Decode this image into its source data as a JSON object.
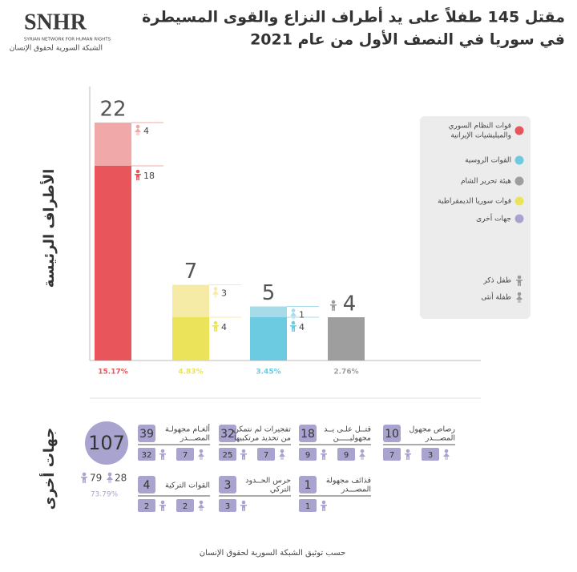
{
  "header": {
    "logo": "SNHR",
    "logo_subtitle": "SYRIAN NETWORK FOR HUMAN RIGHTS",
    "logo_arabic": "الشبكة السورية لحقوق الإنسان",
    "title_lines": [
      "مقتل 145 طفلاً على يد أطراف النزاع والقوى المسيطرة",
      "في سوريا في النصف الأول من عام 2021"
    ]
  },
  "chart_data": {
    "type": "bar",
    "y_label": "الأطراف الرئيسة",
    "legend": [
      {
        "name_lines": [
          "قوات النظام السوري",
          "والميليشيات الإيرانية"
        ],
        "color": "#e8555a"
      },
      {
        "name_lines": [
          "القوات الروسية"
        ],
        "color": "#6ccbe0"
      },
      {
        "name_lines": [
          "هيئة تحرير الشام"
        ],
        "color": "#9e9e9e"
      },
      {
        "name_lines": [
          "قوات سوريا الديمقراطية"
        ],
        "color": "#ebe35a"
      },
      {
        "name_lines": [
          "جهات أخرى"
        ],
        "color": "#a9a3d0"
      }
    ],
    "gender_legend": {
      "boy": "طفل ذكر",
      "girl": "طفلة أنثى"
    },
    "bars": [
      {
        "total": 22,
        "boys": 18,
        "girls": 4,
        "percent": "15.17%",
        "color": "#e8555a",
        "light_color": "#f0a8a8"
      },
      {
        "total": 7,
        "boys": 4,
        "girls": 3,
        "percent": "4.83%",
        "color": "#ebe35a",
        "light_color": "#f6eba6"
      },
      {
        "total": 5,
        "boys": 4,
        "girls": 1,
        "percent": "3.45%",
        "color": "#6ccbe0",
        "light_color": "#a6dcea"
      },
      {
        "total": 4,
        "boys": null,
        "girls": null,
        "percent": "2.76%",
        "color": "#9e9e9e",
        "light_color": "#cccccc"
      }
    ]
  },
  "other_parties": {
    "label": "جهات أخرى",
    "total": 107,
    "boys": 79,
    "girls": 28,
    "percent": "73.79%",
    "color": "#a9a3d0",
    "cards": [
      {
        "title_lines": [
          "رصاص مجهول",
          "المصـــدر"
        ],
        "total": 10,
        "boys": 7,
        "girls": 3
      },
      {
        "title_lines": [
          "قتــل علـى يــد",
          "مجهوليـــــن"
        ],
        "total": 18,
        "boys": 9,
        "girls": 9
      },
      {
        "title_lines": [
          "تفجيرات لم نتمكن",
          "من تحديد مرتكبيها"
        ],
        "total": 32,
        "boys": 25,
        "girls": 7
      },
      {
        "title_lines": [
          "ألغـام مجهولـة",
          "المصـــدر"
        ],
        "total": 39,
        "boys": 32,
        "girls": 7
      },
      {
        "title_lines": [
          "قذائف مجهولة",
          "المصـــدر"
        ],
        "total": 1,
        "boys": 1,
        "girls": null
      },
      {
        "title_lines": [
          "حرس الحــدود",
          "التركي"
        ],
        "total": 3,
        "boys": 3,
        "girls": null
      },
      {
        "title_lines": [
          "القوات التركية"
        ],
        "total": 4,
        "boys": 2,
        "girls": 2
      }
    ]
  },
  "footer": "حسب توثيق الشبكة السورية لحقوق الإنسان"
}
